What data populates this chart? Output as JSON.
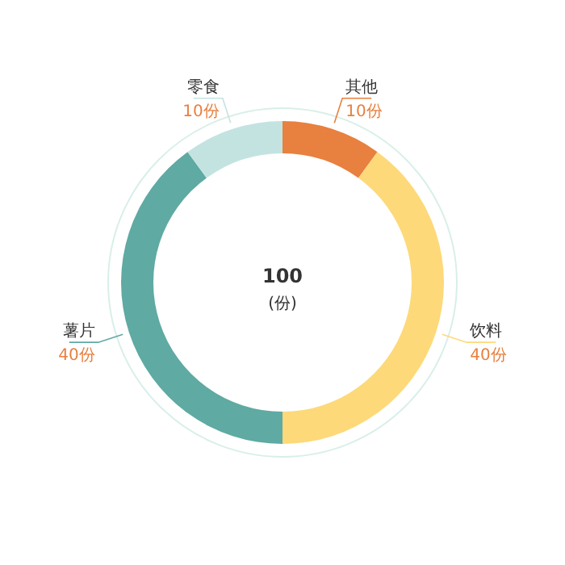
{
  "chart_data": {
    "type": "donut",
    "categories": [
      "其他",
      "饮料",
      "薯片",
      "零食"
    ],
    "values": [
      10,
      40,
      40,
      10
    ],
    "colors": [
      "#e8803f",
      "#fdd97a",
      "#5faaa3",
      "#c3e3e1"
    ],
    "value_labels": [
      "10份",
      "40份",
      "40份",
      "10份"
    ],
    "annotations": [
      "100",
      "(份)"
    ]
  }
}
